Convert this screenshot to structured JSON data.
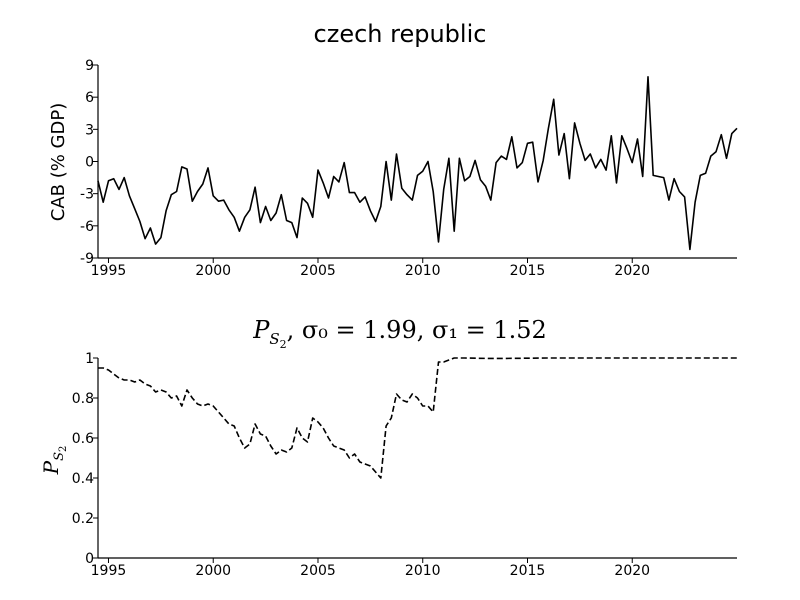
{
  "chart_data": [
    {
      "type": "line",
      "title": "czech republic",
      "xlabel": "",
      "ylabel": "CAB (% GDP)",
      "xlim": [
        1994.5,
        2025
      ],
      "ylim": [
        -9,
        9
      ],
      "x_ticks": [
        1995,
        2000,
        2005,
        2010,
        2015,
        2020
      ],
      "x_tick_labels": [
        "1995",
        "2000",
        "2005",
        "2010",
        "2015",
        "2020"
      ],
      "y_ticks": [
        -9,
        -6,
        -3,
        0,
        3,
        6,
        9
      ],
      "y_tick_labels": [
        "-9",
        "-6",
        "-3",
        "0",
        "3",
        "6",
        "9"
      ],
      "grid": false,
      "line_style": "solid",
      "series": [
        {
          "x": [
            1994.5,
            1994.75,
            1995,
            1995.25,
            1995.5,
            1995.75,
            1996,
            1996.25,
            1996.5,
            1996.75,
            1997,
            1997.25,
            1997.5,
            1997.75,
            1998,
            1998.25,
            1998.5,
            1998.75,
            1999,
            1999.25,
            1999.5,
            1999.75,
            2000,
            2000.25,
            2000.5,
            2000.75,
            2001,
            2001.25,
            2001.5,
            2001.75,
            2002,
            2002.25,
            2002.5,
            2002.75,
            2003,
            2003.25,
            2003.5,
            2003.75,
            2004,
            2004.25,
            2004.5,
            2004.75,
            2005,
            2005.25,
            2005.5,
            2005.75,
            2006,
            2006.25,
            2006.5,
            2006.75,
            2007,
            2007.25,
            2007.5,
            2007.75,
            2008,
            2008.25,
            2008.5,
            2008.75,
            2009,
            2009.25,
            2009.5,
            2009.75,
            2010,
            2010.25,
            2010.5,
            2010.75,
            2011,
            2011.25,
            2011.5,
            2011.75,
            2012,
            2012.25,
            2012.5,
            2012.75,
            2013,
            2013.25,
            2013.5,
            2013.75,
            2014,
            2014.25,
            2014.5,
            2014.75,
            2015,
            2015.25,
            2015.5,
            2015.75,
            2016,
            2016.25,
            2016.5,
            2016.75,
            2017,
            2017.25,
            2017.5,
            2017.75,
            2018,
            2018.25,
            2018.5,
            2018.75,
            2019,
            2019.25,
            2019.5,
            2019.75,
            2020,
            2020.25,
            2020.5,
            2020.75,
            2021,
            2021.25,
            2021.5,
            2021.75,
            2022,
            2022.25,
            2022.5,
            2022.75,
            2023,
            2023.25,
            2023.5,
            2023.75,
            2024,
            2024.25,
            2024.5,
            2024.75,
            2025
          ],
          "y": [
            -1.8,
            -3.8,
            -1.8,
            -1.6,
            -2.6,
            -1.5,
            -3.2,
            -4.4,
            -5.6,
            -7.2,
            -6.2,
            -7.7,
            -7.1,
            -4.6,
            -3.1,
            -2.8,
            -0.5,
            -0.7,
            -3.7,
            -2.8,
            -2.1,
            -0.6,
            -3.2,
            -3.7,
            -3.6,
            -4.5,
            -5.2,
            -6.5,
            -5.2,
            -4.5,
            -2.4,
            -5.7,
            -4.2,
            -5.5,
            -4.8,
            -3.1,
            -5.5,
            -5.7,
            -7.1,
            -3.4,
            -3.9,
            -5.2,
            -0.8,
            -2.0,
            -3.4,
            -1.4,
            -1.9,
            -0.1,
            -2.9,
            -2.9,
            -3.8,
            -3.3,
            -4.6,
            -5.6,
            -4.2,
            0.0,
            -3.6,
            0.7,
            -2.5,
            -3.1,
            -3.6,
            -1.3,
            -0.9,
            0.0,
            -2.8,
            -7.5,
            -2.6,
            0.3,
            -6.5,
            0.3,
            -1.8,
            -1.4,
            0.1,
            -1.7,
            -2.3,
            -3.6,
            -0.1,
            0.5,
            0.2,
            2.3,
            -0.6,
            -0.1,
            1.7,
            1.8,
            -1.9,
            0.1,
            3.1,
            5.8,
            0.6,
            2.6,
            -1.6,
            3.6,
            1.7,
            0.1,
            0.7,
            -0.6,
            0.2,
            -0.8,
            2.4,
            -2.0,
            2.4,
            1.2,
            -0.1,
            2.1,
            -1.4,
            7.9,
            -1.3,
            -1.4,
            -1.5,
            -3.6,
            -1.6,
            -2.8,
            -3.3,
            -8.2,
            -3.8,
            -1.3,
            -1.1,
            0.5,
            0.9,
            2.5,
            0.3,
            2.6,
            3.1
          ]
        }
      ]
    },
    {
      "type": "line",
      "title": "P_{S_2}, σ_0 = 1.99, σ_1 = 1.52",
      "title_parts": {
        "P": "P",
        "sub_S": "S",
        "sub_2": "2",
        "rest": ", σ₀ = 1.99, σ₁ = 1.52"
      },
      "xlabel": "",
      "ylabel": "P_{S_2}",
      "ylabel_parts": {
        "P": "P",
        "sub_S": "S",
        "sub_2": "2"
      },
      "xlim": [
        1994.5,
        2025
      ],
      "ylim": [
        0,
        1
      ],
      "x_ticks": [
        1995,
        2000,
        2005,
        2010,
        2015,
        2020
      ],
      "x_tick_labels": [
        "1995",
        "2000",
        "2005",
        "2010",
        "2015",
        "2020"
      ],
      "y_ticks": [
        0,
        0.2,
        0.4,
        0.6,
        0.8,
        1
      ],
      "y_tick_labels": [
        "0",
        "0.2",
        "0.4",
        "0.6",
        "0.8",
        "1"
      ],
      "grid": false,
      "line_style": "dashed",
      "series": [
        {
          "x": [
            1994.5,
            1994.75,
            1995,
            1995.25,
            1995.5,
            1995.75,
            1996,
            1996.25,
            1996.5,
            1996.75,
            1997,
            1997.25,
            1997.5,
            1997.75,
            1998,
            1998.25,
            1998.5,
            1998.75,
            1999,
            1999.25,
            1999.5,
            1999.75,
            2000,
            2000.25,
            2000.5,
            2000.75,
            2001,
            2001.25,
            2001.5,
            2001.75,
            2002,
            2002.25,
            2002.5,
            2002.75,
            2003,
            2003.25,
            2003.5,
            2003.75,
            2004,
            2004.25,
            2004.5,
            2004.75,
            2005,
            2005.25,
            2005.5,
            2005.75,
            2006,
            2006.25,
            2006.5,
            2006.75,
            2007,
            2007.25,
            2007.5,
            2007.75,
            2008,
            2008.25,
            2008.5,
            2008.75,
            2009,
            2009.25,
            2009.5,
            2009.75,
            2010,
            2010.25,
            2010.5,
            2010.75,
            2011,
            2011.25,
            2011.5,
            2011.75,
            2012,
            2013,
            2014,
            2015,
            2016,
            2017,
            2018,
            2019,
            2020,
            2021,
            2022,
            2023,
            2024,
            2025
          ],
          "y": [
            0.95,
            0.95,
            0.94,
            0.92,
            0.9,
            0.89,
            0.89,
            0.88,
            0.89,
            0.87,
            0.86,
            0.83,
            0.84,
            0.83,
            0.8,
            0.81,
            0.76,
            0.84,
            0.8,
            0.77,
            0.76,
            0.77,
            0.76,
            0.73,
            0.7,
            0.67,
            0.66,
            0.6,
            0.55,
            0.57,
            0.67,
            0.62,
            0.61,
            0.56,
            0.52,
            0.54,
            0.53,
            0.55,
            0.65,
            0.6,
            0.58,
            0.7,
            0.68,
            0.65,
            0.6,
            0.56,
            0.55,
            0.54,
            0.5,
            0.52,
            0.48,
            0.47,
            0.46,
            0.43,
            0.4,
            0.66,
            0.7,
            0.82,
            0.79,
            0.78,
            0.82,
            0.8,
            0.76,
            0.76,
            0.73,
            0.98,
            0.98,
            0.99,
            1.0,
            1.0,
            1.0,
            0.998,
            0.998,
            0.999,
            1.0,
            1.0,
            1.0,
            1.0,
            1.0,
            1.0,
            1.0,
            1.0,
            1.0,
            1.0
          ]
        }
      ]
    }
  ]
}
